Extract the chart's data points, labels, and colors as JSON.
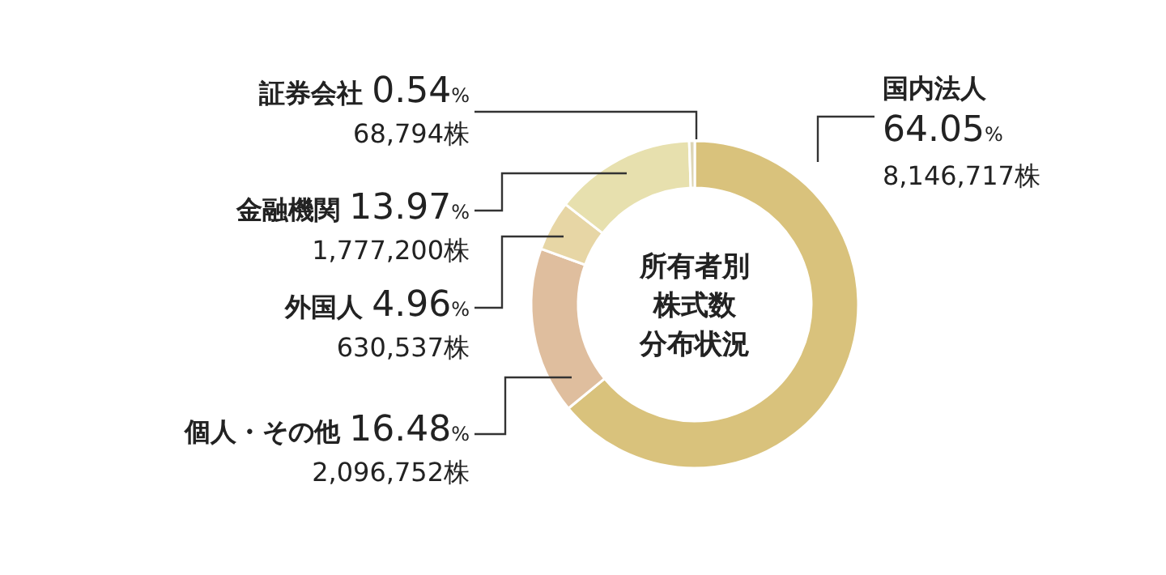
{
  "chart_data": {
    "type": "donut",
    "title": "所有者別株式数分布状況",
    "categories": [
      "国内法人",
      "個人・その他",
      "外国人",
      "金融機関",
      "証券会社"
    ],
    "values": [
      64.05,
      16.48,
      4.96,
      13.97,
      0.54
    ],
    "value_labels": [
      "64.05%",
      "16.48%",
      "4.96%",
      "13.97%",
      "0.54%"
    ],
    "colors": [
      "#d9c27c",
      "#dfbe9e",
      "#e7d6a5",
      "#e7e0ae",
      "#ddd5b4"
    ],
    "annotations": [
      "8,146,717株",
      "2,096,752株",
      "630,537株",
      "1,777,200株",
      "68,794株"
    ]
  }
}
